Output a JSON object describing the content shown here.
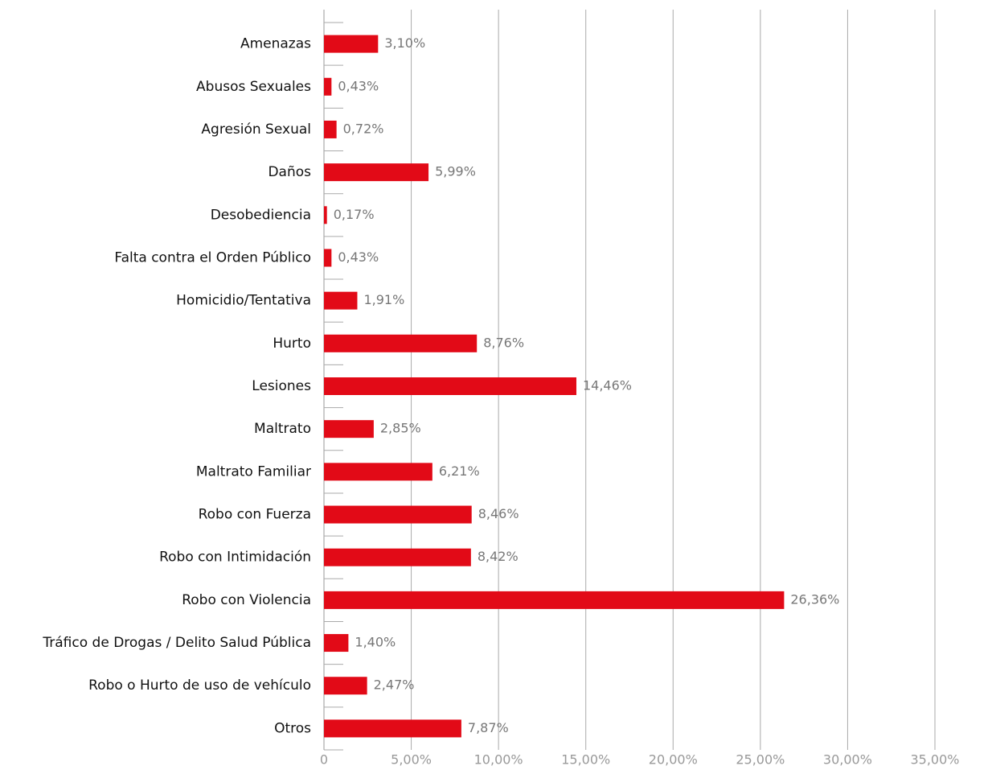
{
  "chart_data": {
    "type": "bar",
    "orientation": "horizontal",
    "categories": [
      "Amenazas",
      "Abusos Sexuales",
      "Agresión Sexual",
      "Daños",
      "Desobediencia",
      "Falta contra el Orden Público",
      "Homicidio/Tentativa",
      "Hurto",
      "Lesiones",
      "Maltrato",
      "Maltrato Familiar",
      "Robo con Fuerza",
      "Robo con Intimidación",
      "Robo con Violencia",
      "Tráfico de Drogas / Delito Salud Pública",
      "Robo o Hurto de uso de vehículo",
      "Otros"
    ],
    "values": [
      3.1,
      0.43,
      0.72,
      5.99,
      0.17,
      0.43,
      1.91,
      8.76,
      14.46,
      2.85,
      6.21,
      8.46,
      8.42,
      26.36,
      1.4,
      2.47,
      7.87
    ],
    "value_labels": [
      "3,10%",
      "0,43%",
      "0,72%",
      "5,99%",
      "0,17%",
      "0,43%",
      "1,91%",
      "8,76%",
      "14,46%",
      "2,85%",
      "6,21%",
      "8,46%",
      "8,42%",
      "26,36%",
      "1,40%",
      "2,47%",
      "7,87%"
    ],
    "color": "#e20a17",
    "xlim": [
      0,
      35
    ],
    "xticks": [
      0,
      {
        "value": 5,
        "label": "5,00%"
      },
      {
        "value": 10,
        "label": "10,00%"
      },
      {
        "value": 15,
        "label": "15,00%"
      },
      {
        "value": 20,
        "label": "20,00%"
      },
      {
        "value": 25,
        "label": "25,00%"
      },
      {
        "value": 30,
        "label": "30,00%"
      },
      {
        "value": 35,
        "label": "35,00%"
      }
    ],
    "grid": true
  }
}
